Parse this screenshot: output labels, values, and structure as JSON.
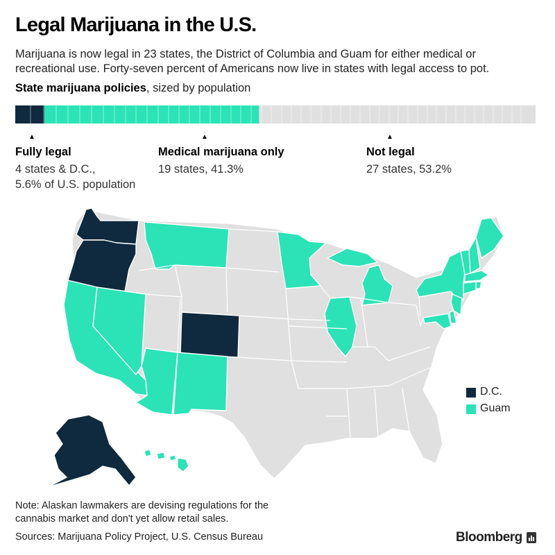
{
  "title": "Legal Marijuana in the U.S.",
  "subtitle": "Marijuana is now legal in 23 states, the District of Columbia and Guam for either medical or recreational use. Forty-seven percent of Americans now live in states with legal access to pot.",
  "bar_heading": {
    "bold": "State marijuana policies",
    "rest": ", sized by population"
  },
  "colors": {
    "fully_legal": "#0f2a3e",
    "medical_only": "#2be3b6",
    "not_legal": "#e0e0e0",
    "background": "#ffffff"
  },
  "population_bar": {
    "fully_legal_pct": 5.6,
    "medical_only_pct": 41.3,
    "not_legal_pct": 53.2
  },
  "categories": {
    "fully_legal": {
      "title": "Fully legal",
      "line1": "4 states & D.C.,",
      "line2": "5.6% of U.S. population"
    },
    "medical_only": {
      "title": "Medical marijuana only",
      "line1": "19 states, 41.3%"
    },
    "not_legal": {
      "title": "Not legal",
      "line1": "27 states, 53.2%"
    }
  },
  "legend": [
    {
      "label": "D.C.",
      "color": "#0f2a3e"
    },
    {
      "label": "Guam",
      "color": "#2be3b6"
    }
  ],
  "note": "Note: Alaskan lawmakers are devising regulations for the cannabis market and don't yet allow retail sales.",
  "sources": "Sources: Marijuana Policy Project, U.S. Census Bureau",
  "brand": "Bloomberg",
  "states": {
    "fully_legal": [
      "Washington",
      "Oregon",
      "Colorado",
      "Alaska"
    ],
    "medical_only": [
      "California",
      "Nevada",
      "Arizona",
      "New Mexico",
      "Montana",
      "Minnesota",
      "Michigan",
      "Illinois",
      "New York",
      "Vermont",
      "New Hampshire",
      "Maine",
      "Massachusetts",
      "Rhode Island",
      "Connecticut",
      "New Jersey",
      "Delaware",
      "Maryland",
      "Hawaii"
    ]
  }
}
